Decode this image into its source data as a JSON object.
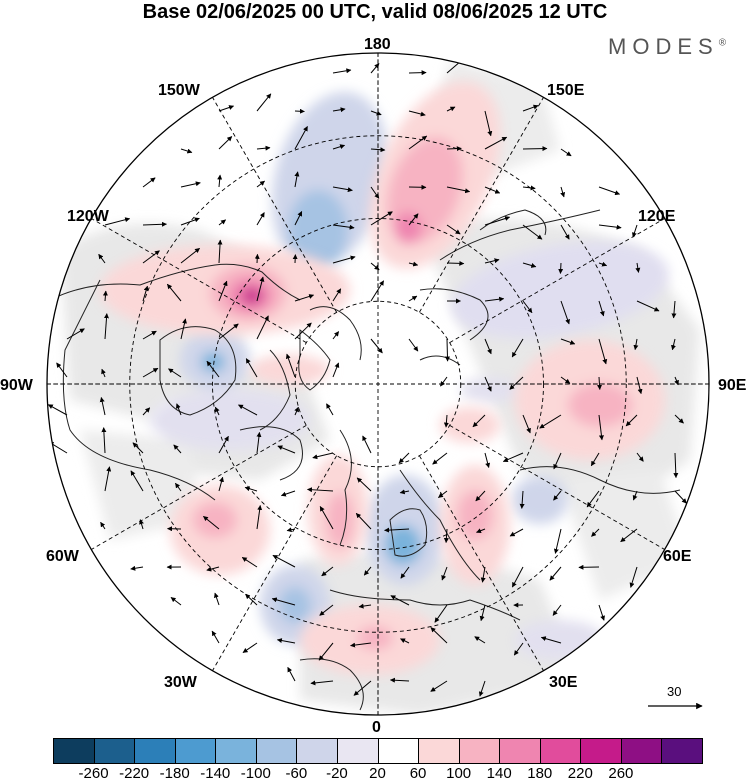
{
  "title": "Base 02/06/2025 00 UTC, valid 08/06/2025 12 UTC",
  "brand": "MODES",
  "brand_mark": "®",
  "longitude_labels": {
    "top": "180",
    "bottom": "0",
    "left": "90W",
    "right": "90E",
    "nw1": "150W",
    "nw2": "120W",
    "ne1": "150E",
    "ne2": "120E",
    "sw1": "60W",
    "sw2": "30W",
    "se1": "60E",
    "se2": "30E"
  },
  "reference_vector": {
    "label": "30"
  },
  "colorbar": {
    "ticks": [
      "-260",
      "-220",
      "-180",
      "-140",
      "-100",
      "-60",
      "-20",
      "20",
      "60",
      "100",
      "140",
      "180",
      "220",
      "260"
    ],
    "colors": [
      "#0d3d5e",
      "#1c5f8d",
      "#2c7fb8",
      "#4d9bd0",
      "#7ab3dc",
      "#a6c3e3",
      "#cfd5ea",
      "#e9e6f2",
      "#ffffff",
      "#fbd8d8",
      "#f7b3c2",
      "#ef85b0",
      "#e14c9c",
      "#c51b8a",
      "#8e0f84",
      "#5a0f7e"
    ]
  },
  "legend": {
    "colors": [
      "#0d3d5e",
      "#1c5f8d",
      "#2c7fb8",
      "#4d9bd0",
      "#7ab3dc",
      "#a6c3e3",
      "#cfd5ea",
      "#e9e6f2",
      "#ffffff",
      "#fbd8d8",
      "#f7b3c2",
      "#ef85b0",
      "#e14c9c",
      "#c51b8a",
      "#8e0f84",
      "#5a0f7e"
    ]
  },
  "map": {
    "background_gray": "#e8e8e8",
    "land_line_color": "#222222",
    "grid_line_color": "#000000"
  }
}
